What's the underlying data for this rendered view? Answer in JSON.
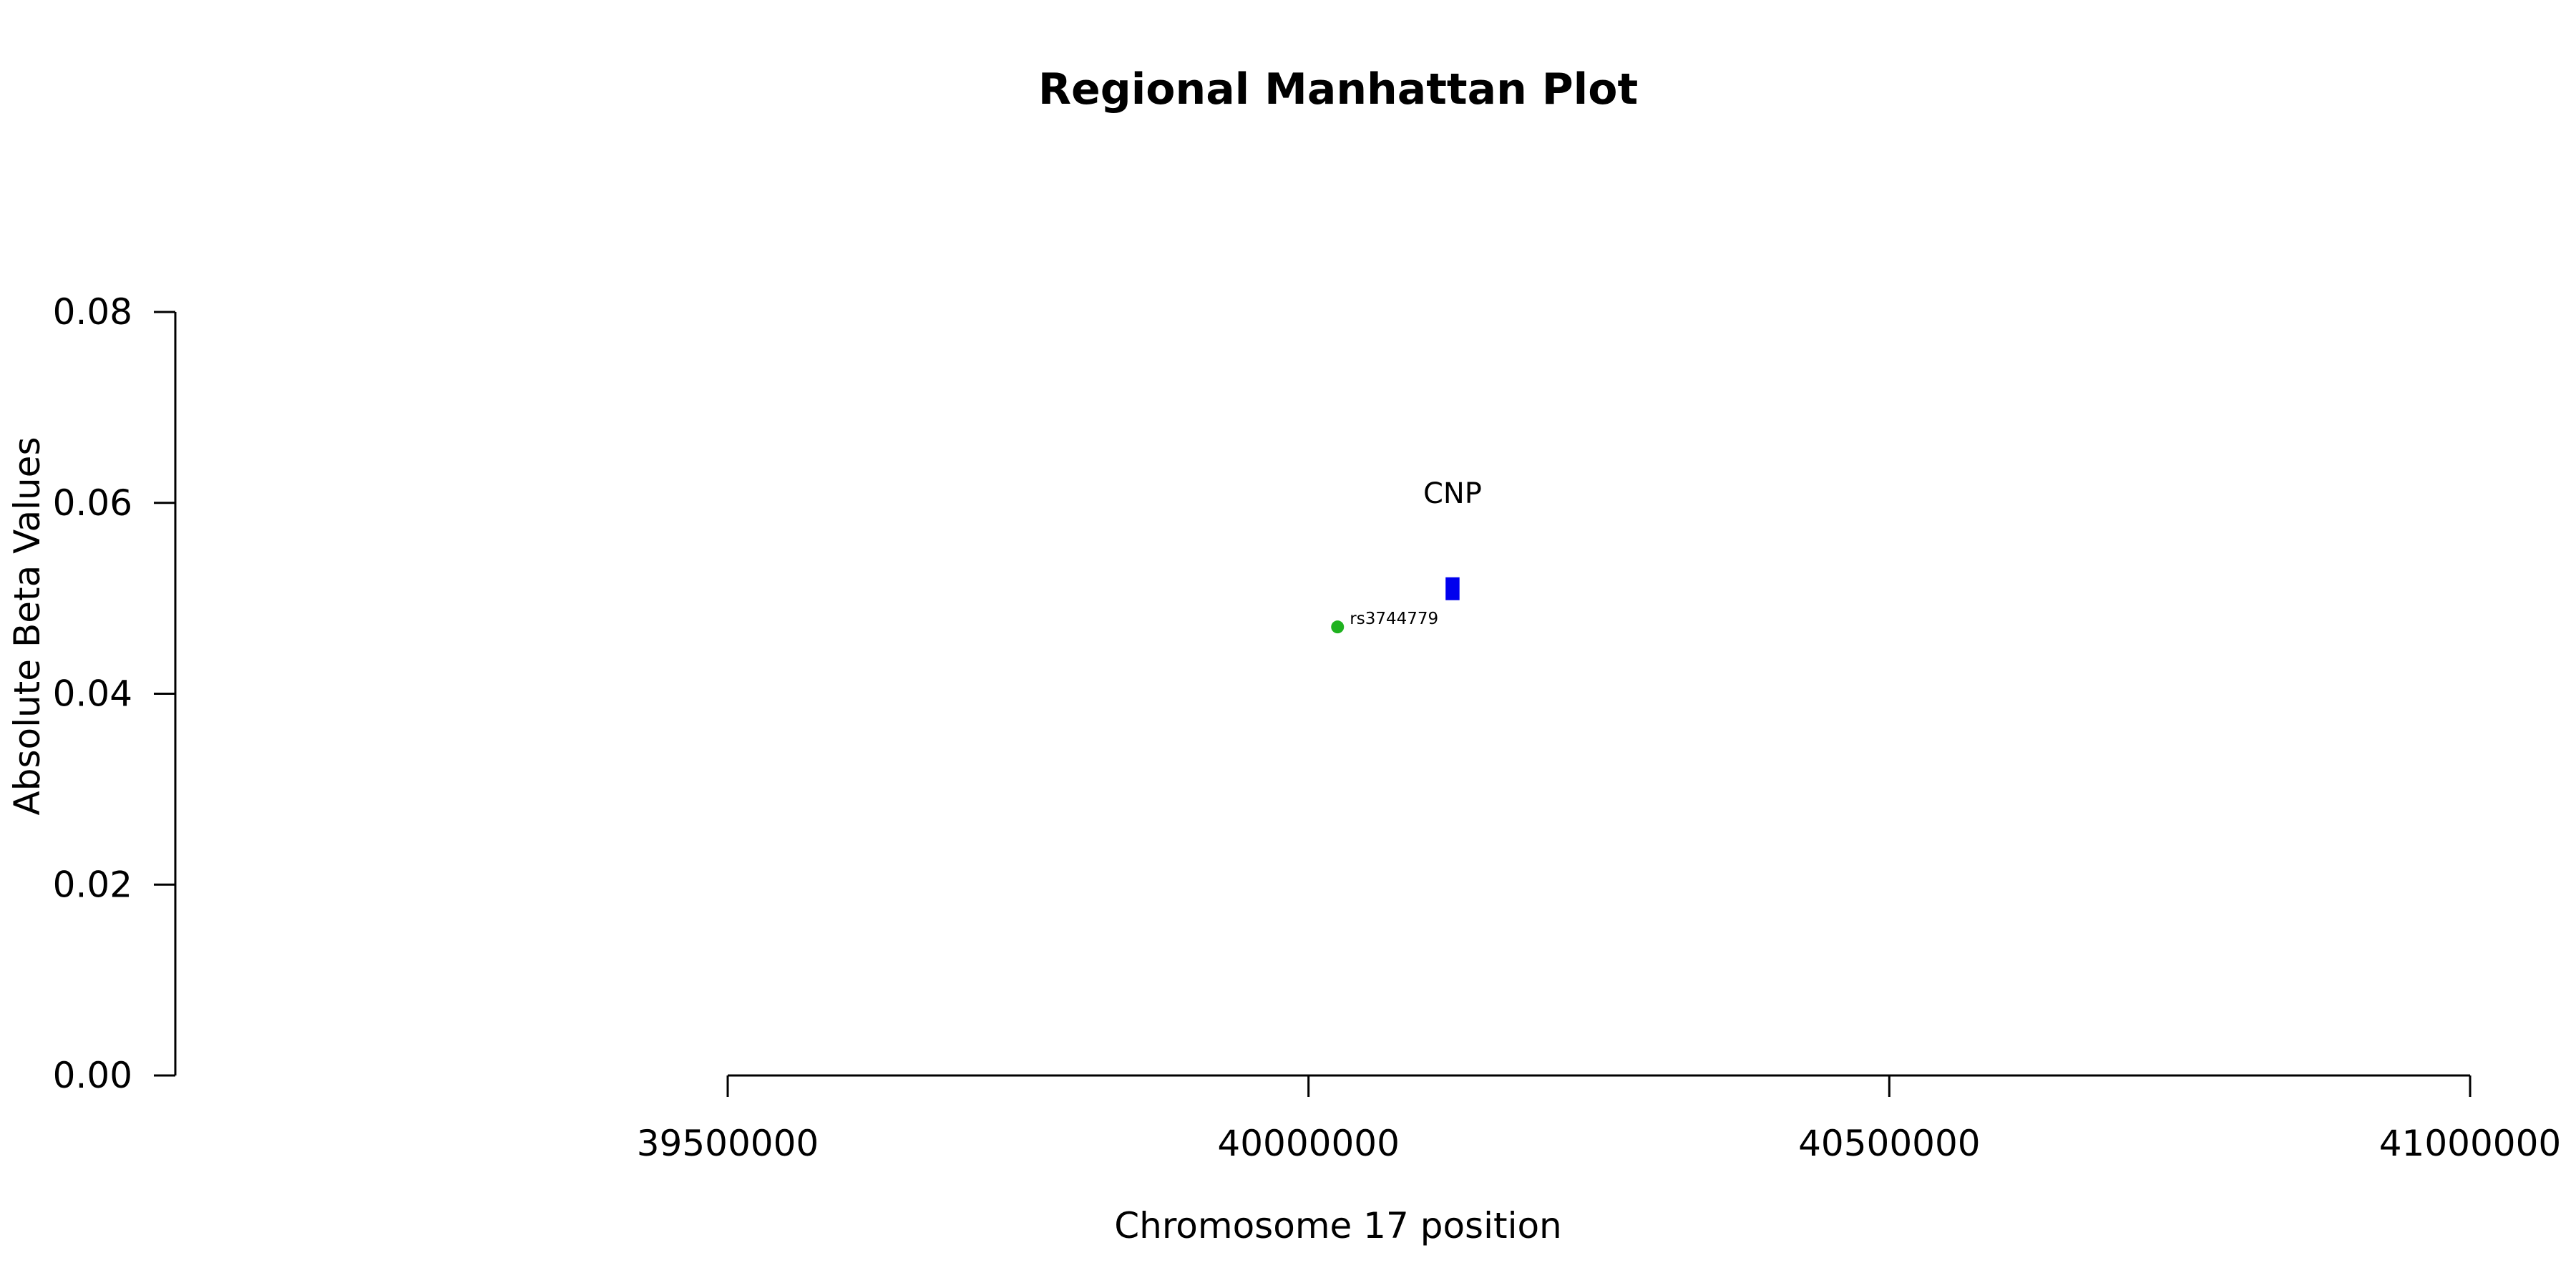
{
  "chart_data": {
    "type": "scatter",
    "title": "Regional Manhattan Plot",
    "xlabel": "Chromosome 17 position",
    "ylabel": "Absolute Beta Values",
    "xlim": [
      39500000,
      41000000
    ],
    "ylim": [
      0,
      0.08
    ],
    "x_ticks": [
      "39500000",
      "40000000",
      "40500000",
      "41000000"
    ],
    "y_ticks": [
      "0.00",
      "0.02",
      "0.04",
      "0.06",
      "0.08"
    ],
    "grid": false,
    "points": [
      {
        "label": "rs3744779",
        "x": 40025000,
        "y": 0.047,
        "color": "#1fb21f"
      }
    ],
    "genes": [
      {
        "label": "CNP",
        "start": 40118000,
        "end": 40130000,
        "y": 0.051,
        "color": "#0000ee"
      }
    ]
  }
}
